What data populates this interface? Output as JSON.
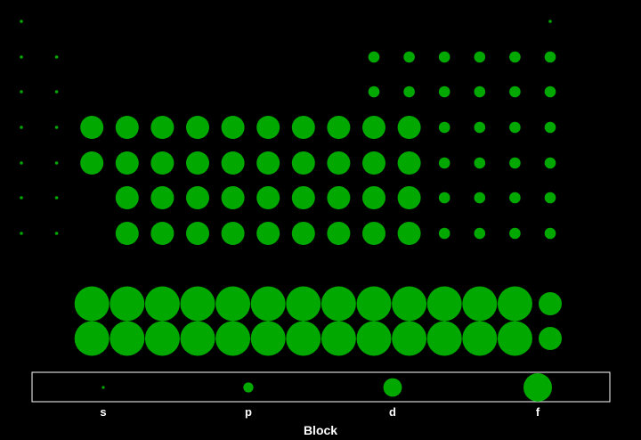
{
  "chart_data": {
    "type": "scatter",
    "title": "",
    "mark_color": "#00a800",
    "background": "#000000",
    "size_encoding": "block",
    "legend": {
      "title": "Block",
      "placement": "bottom",
      "entries": [
        "s",
        "p",
        "d",
        "f"
      ]
    },
    "axes": {
      "x_visible": false,
      "y_visible": false,
      "grid": false
    },
    "series": [
      {
        "block": "s",
        "points": [
          [
            1,
            1
          ],
          [
            1,
            2
          ],
          [
            2,
            2
          ],
          [
            1,
            3
          ],
          [
            2,
            3
          ],
          [
            1,
            4
          ],
          [
            2,
            4
          ],
          [
            1,
            5
          ],
          [
            2,
            5
          ],
          [
            1,
            6
          ],
          [
            2,
            6
          ],
          [
            1,
            7
          ],
          [
            2,
            7
          ],
          [
            16,
            1
          ]
        ]
      },
      {
        "block": "p",
        "points": [
          [
            11,
            2
          ],
          [
            12,
            2
          ],
          [
            13,
            2
          ],
          [
            14,
            2
          ],
          [
            15,
            2
          ],
          [
            16,
            2
          ],
          [
            11,
            3
          ],
          [
            12,
            3
          ],
          [
            13,
            3
          ],
          [
            14,
            3
          ],
          [
            15,
            3
          ],
          [
            16,
            3
          ],
          [
            11,
            4
          ],
          [
            12,
            4
          ],
          [
            13,
            4
          ],
          [
            14,
            4
          ],
          [
            15,
            4
          ],
          [
            16,
            4
          ],
          [
            11,
            5
          ],
          [
            12,
            5
          ],
          [
            13,
            5
          ],
          [
            14,
            5
          ],
          [
            15,
            5
          ],
          [
            16,
            5
          ],
          [
            11,
            6
          ],
          [
            12,
            6
          ],
          [
            13,
            6
          ],
          [
            14,
            6
          ],
          [
            15,
            6
          ],
          [
            16,
            6
          ],
          [
            11,
            7
          ],
          [
            12,
            7
          ],
          [
            13,
            7
          ],
          [
            14,
            7
          ],
          [
            15,
            7
          ],
          [
            16,
            7
          ]
        ]
      },
      {
        "block": "d",
        "points": [
          [
            3,
            4
          ],
          [
            4,
            4
          ],
          [
            5,
            4
          ],
          [
            6,
            4
          ],
          [
            7,
            4
          ],
          [
            8,
            4
          ],
          [
            9,
            4
          ],
          [
            10,
            4
          ],
          [
            11,
            4
          ],
          [
            12,
            4
          ],
          [
            3,
            5
          ],
          [
            4,
            5
          ],
          [
            5,
            5
          ],
          [
            6,
            5
          ],
          [
            7,
            5
          ],
          [
            8,
            5
          ],
          [
            9,
            5
          ],
          [
            10,
            5
          ],
          [
            11,
            5
          ],
          [
            12,
            5
          ],
          [
            4,
            6
          ],
          [
            5,
            6
          ],
          [
            6,
            6
          ],
          [
            7,
            6
          ],
          [
            8,
            6
          ],
          [
            9,
            6
          ],
          [
            10,
            6
          ],
          [
            11,
            6
          ],
          [
            12,
            6
          ],
          [
            4,
            7
          ],
          [
            5,
            7
          ],
          [
            6,
            7
          ],
          [
            7,
            7
          ],
          [
            8,
            7
          ],
          [
            9,
            7
          ],
          [
            10,
            7
          ],
          [
            11,
            7
          ],
          [
            12,
            7
          ],
          [
            16,
            9
          ],
          [
            16,
            10
          ]
        ]
      },
      {
        "block": "f",
        "points": [
          [
            3,
            9
          ],
          [
            4,
            9
          ],
          [
            5,
            9
          ],
          [
            6,
            9
          ],
          [
            7,
            9
          ],
          [
            8,
            9
          ],
          [
            9,
            9
          ],
          [
            10,
            9
          ],
          [
            11,
            9
          ],
          [
            12,
            9
          ],
          [
            13,
            9
          ],
          [
            14,
            9
          ],
          [
            15,
            9
          ],
          [
            3,
            10
          ],
          [
            4,
            10
          ],
          [
            5,
            10
          ],
          [
            6,
            10
          ],
          [
            7,
            10
          ],
          [
            8,
            10
          ],
          [
            9,
            10
          ],
          [
            10,
            10
          ],
          [
            11,
            10
          ],
          [
            12,
            10
          ],
          [
            13,
            10
          ],
          [
            14,
            10
          ],
          [
            15,
            10
          ]
        ]
      }
    ]
  }
}
